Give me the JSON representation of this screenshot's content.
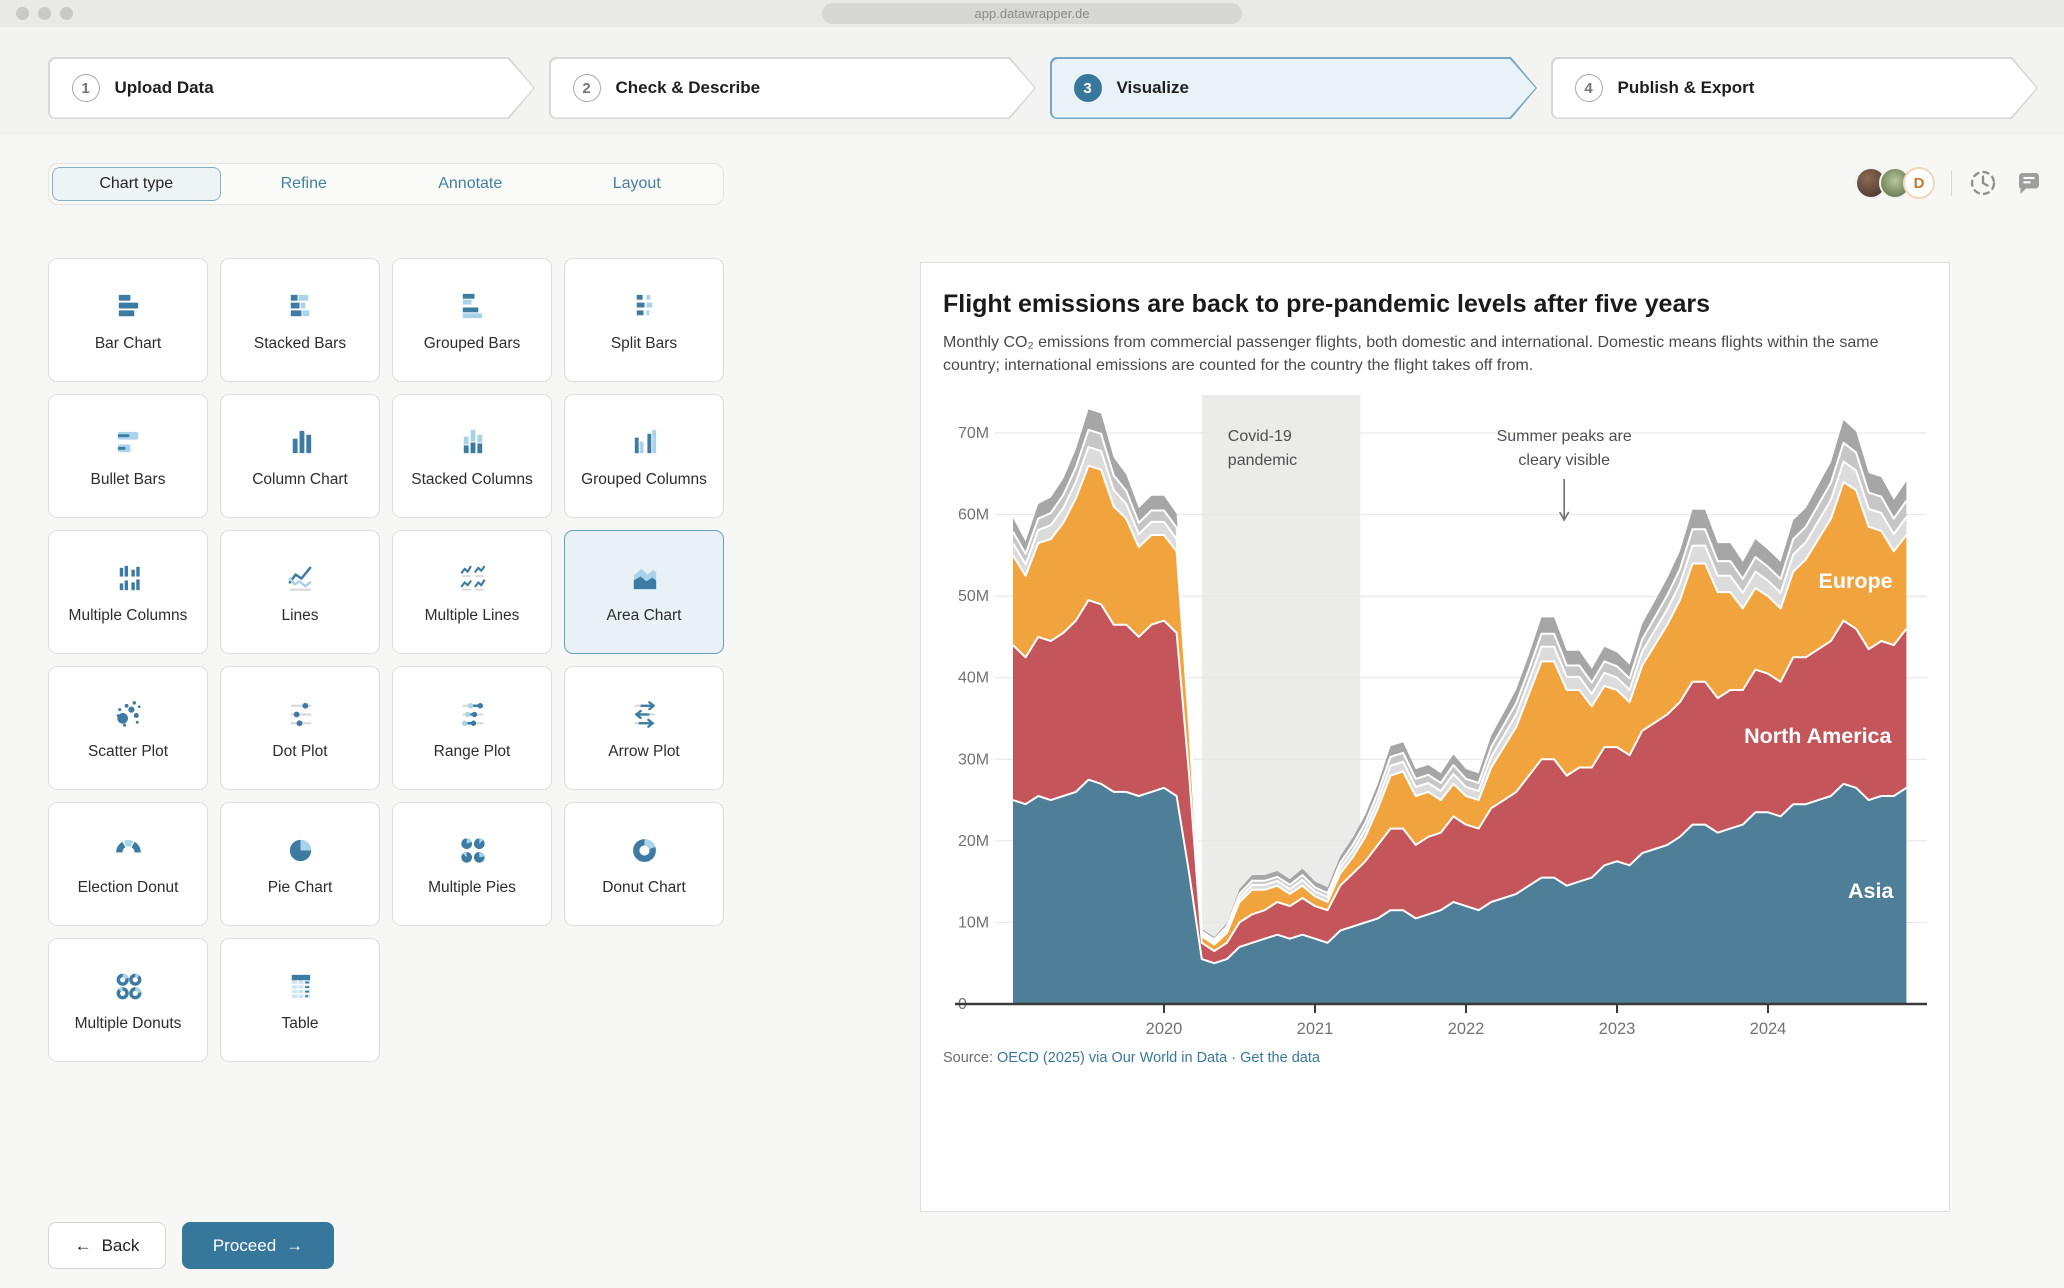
{
  "browser": {
    "url": "app.datawrapper.de"
  },
  "stepper": {
    "steps": [
      {
        "number": "1",
        "label": "Upload Data",
        "active": false
      },
      {
        "number": "2",
        "label": "Check & Describe",
        "active": false
      },
      {
        "number": "3",
        "label": "Visualize",
        "active": true
      },
      {
        "number": "4",
        "label": "Publish & Export",
        "active": false
      }
    ]
  },
  "tabs": {
    "items": [
      {
        "label": "Chart type",
        "active": true
      },
      {
        "label": "Refine",
        "active": false
      },
      {
        "label": "Annotate",
        "active": false
      },
      {
        "label": "Layout",
        "active": false
      }
    ]
  },
  "toolbar": {
    "avatars": [
      {
        "type": "photo-1",
        "label": ""
      },
      {
        "type": "photo-2",
        "label": ""
      },
      {
        "type": "letter",
        "label": "D"
      }
    ],
    "icons": [
      "history-icon",
      "comments-icon"
    ]
  },
  "chart_types": {
    "items": [
      {
        "label": "Bar Chart",
        "icon": "bar-chart",
        "selected": false
      },
      {
        "label": "Stacked Bars",
        "icon": "stacked-bars",
        "selected": false
      },
      {
        "label": "Grouped Bars",
        "icon": "grouped-bars",
        "selected": false
      },
      {
        "label": "Split Bars",
        "icon": "split-bars",
        "selected": false
      },
      {
        "label": "Bullet Bars",
        "icon": "bullet-bars",
        "selected": false
      },
      {
        "label": "Column Chart",
        "icon": "column-chart",
        "selected": false
      },
      {
        "label": "Stacked Columns",
        "icon": "stacked-columns",
        "selected": false
      },
      {
        "label": "Grouped Columns",
        "icon": "grouped-columns",
        "selected": false
      },
      {
        "label": "Multiple Columns",
        "icon": "multiple-columns",
        "selected": false
      },
      {
        "label": "Lines",
        "icon": "lines",
        "selected": false
      },
      {
        "label": "Multiple Lines",
        "icon": "multiple-lines",
        "selected": false
      },
      {
        "label": "Area Chart",
        "icon": "area-chart",
        "selected": true
      },
      {
        "label": "Scatter Plot",
        "icon": "scatter-plot",
        "selected": false
      },
      {
        "label": "Dot Plot",
        "icon": "dot-plot",
        "selected": false
      },
      {
        "label": "Range Plot",
        "icon": "range-plot",
        "selected": false
      },
      {
        "label": "Arrow Plot",
        "icon": "arrow-plot",
        "selected": false
      },
      {
        "label": "Election Donut",
        "icon": "election-donut",
        "selected": false
      },
      {
        "label": "Pie Chart",
        "icon": "pie-chart",
        "selected": false
      },
      {
        "label": "Multiple Pies",
        "icon": "multiple-pies",
        "selected": false
      },
      {
        "label": "Donut Chart",
        "icon": "donut-chart",
        "selected": false
      },
      {
        "label": "Multiple Donuts",
        "icon": "multiple-donuts",
        "selected": false
      },
      {
        "label": "Table",
        "icon": "table",
        "selected": false
      }
    ]
  },
  "preview": {
    "title": "Flight emissions are back to pre-pandemic levels after five years",
    "subtitle": "Monthly CO₂ emissions from commercial passenger flights, both domestic and international. Domestic means flights within the same country; international emissions are counted for the country the flight takes off from.",
    "source_label": "Source:",
    "source_link_1": "OECD (2025) via Our World in Data",
    "source_separator": "·",
    "source_link_2": "Get the data"
  },
  "footer": {
    "back_arrow": "←",
    "back_label": "Back",
    "proceed_label": "Proceed",
    "proceed_arrow": "→"
  },
  "chart_data": {
    "type": "area",
    "stacked": true,
    "title": "Flight emissions are back to pre-pandemic levels after five years",
    "x_start_year": 2019,
    "points_per_year": 12,
    "x_ticks": [
      2020,
      2021,
      2022,
      2023,
      2024
    ],
    "y_ticks": [
      {
        "v": 70,
        "label": "70M"
      },
      {
        "v": 60,
        "label": "60M"
      },
      {
        "v": 50,
        "label": "50M"
      },
      {
        "v": 40,
        "label": "40M"
      },
      {
        "v": 30,
        "label": "30M"
      },
      {
        "v": 20,
        "label": "20M"
      },
      {
        "v": 10,
        "label": "10M"
      },
      {
        "v": 0,
        "label": "0"
      }
    ],
    "ylim": [
      0,
      75
    ],
    "band": {
      "from": 2020.25,
      "to": 2021.3,
      "lines": [
        "Covid-19",
        "pandemic"
      ],
      "fill": "#ebebe9"
    },
    "annotation": {
      "lines": [
        "Summer peaks are",
        "cleary visible"
      ],
      "year": 2022.65,
      "arrow": true
    },
    "series": [
      {
        "name": "Asia",
        "color": "#4f7f98",
        "label_year": 2024.68,
        "label_value": 13,
        "values": [
          25,
          24.5,
          25.5,
          25,
          25.5,
          26,
          27.5,
          27,
          26,
          26,
          25.5,
          26,
          26.5,
          25.5,
          16,
          5.5,
          5,
          5.5,
          7,
          7.5,
          8,
          8.5,
          8,
          8.5,
          8,
          7.5,
          9,
          9.5,
          10,
          10.5,
          11.5,
          11.5,
          10.5,
          11,
          11.5,
          12.5,
          12,
          11.5,
          12.5,
          13,
          13.5,
          14.5,
          15.5,
          15.5,
          14.5,
          15,
          15.5,
          17,
          17.5,
          17,
          18.5,
          19,
          19.5,
          20.5,
          22,
          22,
          21,
          21.5,
          22,
          23.5,
          23.5,
          23,
          24.5,
          24.5,
          25,
          25.5,
          27,
          26.5,
          25,
          25.5,
          25.5,
          26.5
        ]
      },
      {
        "name": "North America",
        "color": "#c4555a",
        "label_year": 2024.33,
        "label_value": 32,
        "values": [
          19,
          18,
          19.5,
          19.5,
          20,
          21,
          22,
          22,
          20.5,
          20.5,
          19.5,
          20.5,
          20.5,
          20,
          12,
          2,
          1.5,
          2,
          3,
          3.5,
          3.5,
          4,
          4,
          4.5,
          4,
          4,
          5.5,
          6.5,
          7.5,
          9,
          10,
          10,
          9,
          9.5,
          9.5,
          10.5,
          10,
          10,
          11.5,
          12,
          12.5,
          13.5,
          14.5,
          14.5,
          13.5,
          14,
          13.5,
          14.5,
          14,
          13.5,
          15,
          15.5,
          16,
          16.5,
          17.5,
          17.5,
          16.5,
          17,
          16.5,
          17.5,
          17,
          16.5,
          18,
          18,
          18.5,
          19,
          20,
          19.5,
          18.5,
          19,
          18.5,
          19.5
        ]
      },
      {
        "name": "Europe",
        "color": "#f1a43e",
        "label_year": 2024.58,
        "label_value": 51,
        "values": [
          11,
          10,
          11.5,
          12.5,
          13.5,
          15,
          16.5,
          16.5,
          14.5,
          13,
          11,
          11,
          10.5,
          10,
          6,
          0.8,
          0.8,
          1.2,
          2.5,
          3,
          2.5,
          2,
          1.5,
          1.5,
          1.2,
          1,
          1.5,
          2,
          3,
          4.5,
          6.5,
          7,
          6,
          5.5,
          4,
          4,
          3.5,
          3.5,
          5,
          6.5,
          8,
          10,
          12,
          12,
          10.5,
          9.5,
          7.5,
          7.5,
          7,
          6.5,
          8,
          9.5,
          11,
          12.5,
          14.5,
          14.5,
          13,
          12,
          10,
          10,
          9.5,
          9,
          10.5,
          12,
          13.5,
          15,
          17,
          17,
          15,
          13.5,
          11.5,
          11.5
        ]
      },
      {
        "name": "other_1",
        "color": "#dcdcdc",
        "values": [
          1.5,
          1.4,
          1.6,
          1.7,
          1.8,
          2,
          2.3,
          2.3,
          2,
          1.8,
          1.6,
          1.6,
          1.6,
          1.5,
          1,
          0.3,
          0.3,
          0.4,
          0.5,
          0.6,
          0.6,
          0.6,
          0.6,
          0.7,
          0.6,
          0.6,
          0.7,
          0.8,
          0.9,
          1,
          1.2,
          1.2,
          1.1,
          1.1,
          1.1,
          1.2,
          1.1,
          1.1,
          1.3,
          1.4,
          1.5,
          1.6,
          1.8,
          1.8,
          1.6,
          1.6,
          1.5,
          1.6,
          1.5,
          1.5,
          1.7,
          1.8,
          1.9,
          2,
          2.2,
          2.2,
          2,
          2,
          1.9,
          2,
          1.9,
          1.9,
          2.1,
          2.1,
          2.2,
          2.3,
          2.5,
          2.4,
          2.2,
          2.2,
          2.1,
          2.2
        ]
      },
      {
        "name": "other_2",
        "color": "#c6c6c6",
        "values": [
          1.4,
          1.3,
          1.4,
          1.5,
          1.6,
          1.8,
          2.1,
          2.1,
          1.8,
          1.6,
          1.4,
          1.4,
          1.4,
          1.4,
          0.9,
          0.3,
          0.3,
          0.4,
          0.5,
          0.5,
          0.5,
          0.5,
          0.5,
          0.6,
          0.5,
          0.5,
          0.6,
          0.7,
          0.8,
          0.9,
          1.1,
          1.1,
          1,
          1,
          1,
          1.1,
          1,
          1,
          1.2,
          1.3,
          1.4,
          1.4,
          1.6,
          1.6,
          1.4,
          1.4,
          1.4,
          1.4,
          1.4,
          1.4,
          1.5,
          1.6,
          1.7,
          1.8,
          2,
          2,
          1.8,
          1.8,
          1.7,
          1.8,
          1.7,
          1.7,
          1.9,
          1.9,
          2,
          2.1,
          2.3,
          2.2,
          2,
          2,
          1.9,
          2
        ]
      },
      {
        "name": "other_3",
        "color": "#a6a6a6",
        "values": [
          1.7,
          1.5,
          1.8,
          1.9,
          2,
          2.2,
          2.5,
          2.5,
          2.2,
          2,
          1.8,
          1.8,
          1.8,
          1.7,
          1.1,
          0.3,
          0.3,
          0.4,
          0.6,
          0.7,
          0.7,
          0.7,
          0.7,
          0.8,
          0.7,
          0.7,
          0.8,
          0.9,
          1,
          1.1,
          1.3,
          1.3,
          1.2,
          1.2,
          1.2,
          1.3,
          1.2,
          1.2,
          1.4,
          1.5,
          1.7,
          1.8,
          2,
          2,
          1.8,
          1.8,
          1.7,
          1.8,
          1.7,
          1.7,
          1.9,
          2,
          2.1,
          2.2,
          2.4,
          2.4,
          2.2,
          2.2,
          2.1,
          2.2,
          2.1,
          2.1,
          2.3,
          2.3,
          2.4,
          2.5,
          2.8,
          2.6,
          2.4,
          2.4,
          2.3,
          2.4
        ]
      }
    ]
  }
}
